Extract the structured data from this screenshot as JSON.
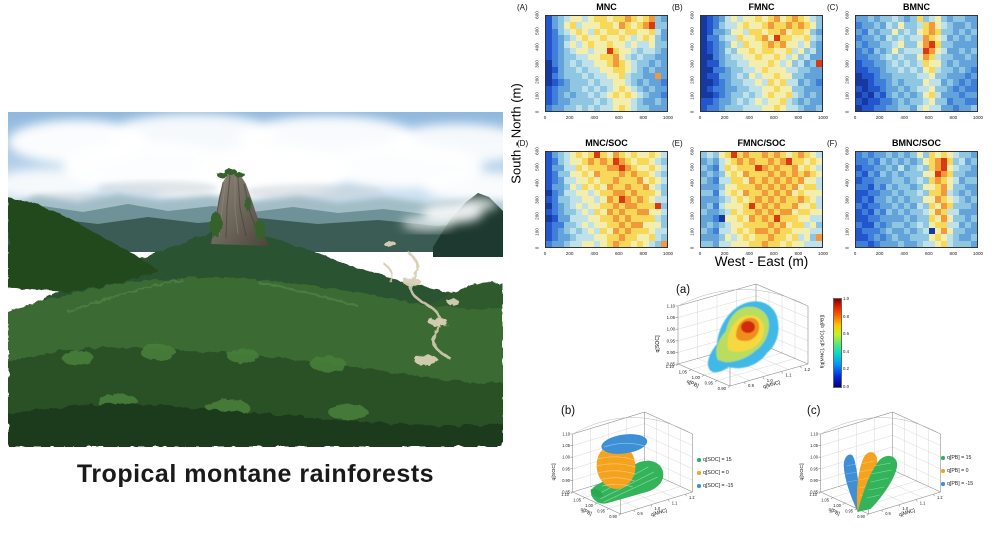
{
  "photo": {
    "caption": "Tropical montane rainforests"
  },
  "chart_data": [
    {
      "id": "spatial_heatmaps",
      "type": "heatmap",
      "xlabel": "West - East (m)",
      "ylabel": "South - North (m)",
      "x_ticks": [
        "0",
        "200",
        "400",
        "600",
        "800",
        "1000"
      ],
      "y_ticks": [
        "0",
        "100",
        "200",
        "300",
        "400",
        "500",
        "600"
      ],
      "xlim": [
        0,
        1000
      ],
      "ylim": [
        0,
        600
      ],
      "value_scale": "relative cell intensity 0 (low, blue) to 9 (high, red); rows listed north (600 m) to south (0 m), 20 cells west to east",
      "palette": [
        "#16399f",
        "#2356cd",
        "#3f7ed9",
        "#63a3da",
        "#8fc6e2",
        "#bfe1ea",
        "#f3eeae",
        "#f8d858",
        "#f1993b",
        "#dc3912"
      ],
      "panels": [
        {
          "letter": "(A)",
          "title": "MNC",
          "rows": [
            "13456656776778767843",
            "13467566677687678944",
            "12456765767767766753",
            "12345676676676567643",
            "12356567667665655644",
            "12345665669766545543",
            "12344556677865454433",
            "02345455667876544343",
            "01344545566776543433",
            "02344454556675443383",
            "01234445455665434332",
            "12334454545676543433",
            "12343445456767654332",
            "12334444545666543343",
            "23344545455676544333"
          ]
        },
        {
          "letter": "(B)",
          "title": "FMNC",
          "rows": [
            "01235656676786787654",
            "01245567667877878764",
            "01334665776778677643",
            "02245576678697766754",
            "01234657667878665643",
            "01235466767766756453",
            "00234556676676564533",
            "01134455666765645349",
            "00223445567666554433",
            "01133454656676644333",
            "00123445565767553432",
            "01223344556676644333",
            "00123445456766754343",
            "11233454565667543433",
            "12234445556676554334"
          ]
        },
        {
          "letter": "(C)",
          "title": "BMNC",
          "rows": [
            "33434454347456434433",
            "23343546445786543343",
            "32434464546787443434",
            "23343545455876534343",
            "32334456446897443333",
            "23243464555986533434",
            "22334545446875443343",
            "12233454545766434333",
            "11223445454675443432",
            "01123344445564433323",
            "00122343444655343232",
            "10112334345564432322",
            "01021343434675333233",
            "10112234344564423322",
            "01122334435655332334"
          ]
        },
        {
          "letter": "(D)",
          "title": "MNC/SOC",
          "rows": [
            "13456767976876766765",
            "12456678787987677654",
            "13355767778898766765",
            "12446676877787877654",
            "12355667677877786765",
            "13346576768778778654",
            "02355665677887877764",
            "12445566568798787655",
            "02345656677878877794",
            "12344565768787788665",
            "01335556677878777754",
            "12244565667787886664",
            "12345456576878777655",
            "12334555667787766754",
            "23345566567877676548"
          ]
        },
        {
          "letter": "(E)",
          "title": "FMNC/SOC",
          "rows": [
            "45467978778787678765",
            "34356787877878977676",
            "43257677798787786765",
            "34346768777878787876",
            "43255776878787878665",
            "33346677787878786775",
            "44256768778787867666",
            "33345676787878778765",
            "34256667978787786675",
            "43345767787878867766",
            "33206676878797776655",
            "34345667777878677564",
            "43255676788787766655",
            "33346567677877675648",
            "44355666778776766555"
          ]
        },
        {
          "letter": "(F)",
          "title": "BMNC/SOC",
          "rows": [
            "23233434346476765443",
            "22324343434678974534",
            "12233435345478965443",
            "21324343444669874433",
            "12233344345478765344",
            "22132434434667864433",
            "11223343445477854343",
            "12133434344668765434",
            "21223343435476874443",
            "12132434344568755333",
            "11223333434476864434",
            "21132344345467755343",
            "12223433434506864433",
            "11232343344467654334",
            "22123334334556754443"
          ]
        }
      ]
    },
    {
      "id": "copula_3d_plots",
      "type": "scatter",
      "panels": [
        {
          "letter": "(a)",
          "x_label": "q[MNC]",
          "y_label": "q[PB]",
          "z_label": "q[SOC]",
          "x_ticks": [
            "0.9",
            "1.0",
            "1.1",
            "1.2"
          ],
          "y_ticks": [
            "1.10",
            "1.05",
            "1.00",
            "0.95",
            "0.90"
          ],
          "z_ticks": [
            "0.85",
            "0.90",
            "0.95",
            "1.00",
            "1.05",
            "1.10"
          ],
          "colorbar": {
            "label": "f(q[MNC], q[SOC], q[PB])",
            "ticks": [
              "1.0",
              "0.8",
              "0.6",
              "0.4",
              "0.2",
              "0.0"
            ]
          }
        },
        {
          "letter": "(b)",
          "x_label": "q[MNC]",
          "y_label": "q[PB]",
          "z_label": "q[SOC]",
          "x_ticks": [
            "0.9",
            "1.0",
            "1.1",
            "1.2"
          ],
          "y_ticks": [
            "1.10",
            "1.05",
            "1.00",
            "0.95",
            "0.90"
          ],
          "z_ticks": [
            "0.85",
            "0.90",
            "0.95",
            "1.00",
            "1.05",
            "1.10"
          ],
          "legend": [
            {
              "label": "q[SOC] = 15",
              "color": "#2fae5f"
            },
            {
              "label": "q[SOC] = 0",
              "color": "#f5a31f"
            },
            {
              "label": "q[SOC] = -15",
              "color": "#3d8fd6"
            }
          ]
        },
        {
          "letter": "(c)",
          "x_label": "q[MNC]",
          "y_label": "q[PB]",
          "z_label": "q[SOC]",
          "x_ticks": [
            "0.9",
            "1.0",
            "1.1",
            "1.2"
          ],
          "y_ticks": [
            "1.10",
            "1.05",
            "1.00",
            "0.95",
            "0.90"
          ],
          "z_ticks": [
            "0.85",
            "0.90",
            "0.95",
            "1.00",
            "1.05",
            "1.10"
          ],
          "legend": [
            {
              "label": "q[PB] = 15",
              "color": "#2fae5f"
            },
            {
              "label": "q[PB] = 0",
              "color": "#f5a31f"
            },
            {
              "label": "q[PB] = -15",
              "color": "#3d8fd6"
            }
          ]
        }
      ]
    }
  ]
}
